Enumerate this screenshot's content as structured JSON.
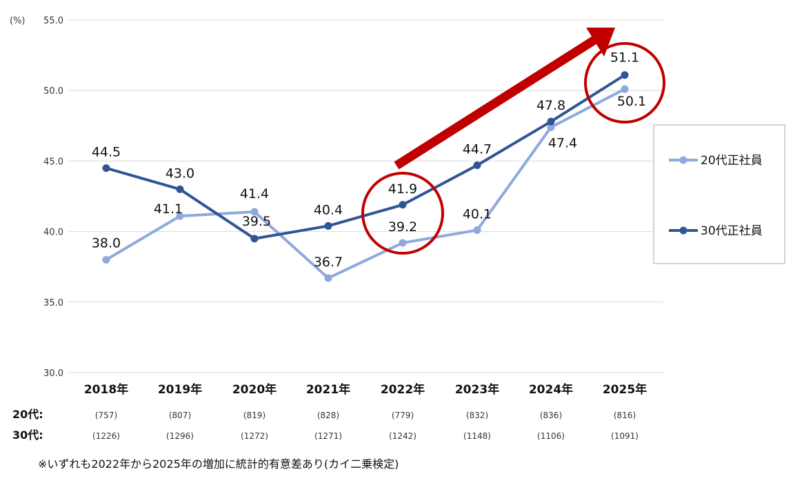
{
  "chart_data": {
    "type": "line",
    "unit_label": "(%)",
    "ylim": [
      30.0,
      55.0
    ],
    "yticks": [
      "30.0",
      "35.0",
      "40.0",
      "45.0",
      "50.0",
      "55.0"
    ],
    "categories": [
      "2018年",
      "2019年",
      "2020年",
      "2021年",
      "2022年",
      "2023年",
      "2024年",
      "2025年"
    ],
    "series": [
      {
        "name": "20代正社員",
        "color": "#8FA9DC",
        "values": [
          38.0,
          41.1,
          41.4,
          36.7,
          39.2,
          40.1,
          47.4,
          50.1
        ],
        "labels": [
          "38.0",
          "41.1",
          "",
          "36.7",
          "39.2",
          "40.1",
          "47.4",
          "50.1"
        ]
      },
      {
        "name": "30代正社員",
        "color": "#2F5597",
        "values": [
          44.5,
          43.0,
          39.5,
          40.4,
          41.9,
          44.7,
          47.8,
          51.1
        ],
        "labels": [
          "44.5",
          "43.0",
          "39.5",
          "40.4",
          "41.9",
          "44.7",
          "47.8",
          "51.1"
        ]
      }
    ],
    "extra_labels": {
      "2020年": "41.4"
    },
    "grid": true,
    "legend_position": "right"
  },
  "sample_sizes": {
    "row20_label": "20代:",
    "row30_label": "30代:",
    "row20": [
      "(757)",
      "(807)",
      "(819)",
      "(828)",
      "(779)",
      "(832)",
      "(836)",
      "(816)"
    ],
    "row30": [
      "(1226)",
      "(1296)",
      "(1272)",
      "(1271)",
      "(1242)",
      "(1148)",
      "(1106)",
      "(1091)"
    ]
  },
  "annotations": {
    "highlight_color": "#C00000",
    "arrow": "red-up-arrow"
  },
  "footnote": "※いずれも2022年から2025年の増加に統計的有意差あり(カイ二乗検定)"
}
